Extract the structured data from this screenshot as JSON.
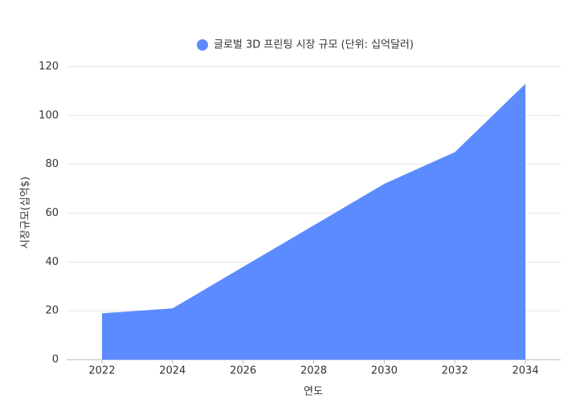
{
  "chart_data": {
    "type": "area",
    "x": [
      2022,
      2024,
      2026,
      2028,
      2030,
      2032,
      2034
    ],
    "series": [
      {
        "name": "글로벌 3D 프린팅 시장 규모 (단위: 십억달러)",
        "color": "#5b8bff",
        "values": [
          19,
          21,
          38,
          55,
          72,
          85,
          113
        ]
      }
    ],
    "xlabel": "연도",
    "ylabel": "시장규모(십억$)",
    "xlim": [
      2021,
      2035
    ],
    "xticks": [
      2022,
      2024,
      2026,
      2028,
      2030,
      2032,
      2034
    ],
    "ylim": [
      0,
      120
    ],
    "yticks": [
      0,
      20,
      40,
      60,
      80,
      100,
      120
    ],
    "grid": true
  }
}
